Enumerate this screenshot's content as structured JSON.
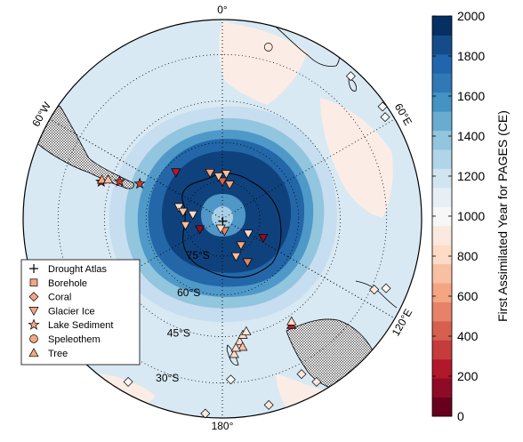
{
  "map": {
    "projection": "south-polar-stereographic",
    "center_lat": -90,
    "edge_lat": -20,
    "longitude_labels": [
      {
        "text": "0°",
        "lon": 0
      },
      {
        "text": "60°E",
        "lon": 60
      },
      {
        "text": "120°E",
        "lon": 120
      },
      {
        "text": "180°",
        "lon": 180
      },
      {
        "text": "60°W",
        "lon": -60
      }
    ],
    "latitude_labels": [
      {
        "text": "75°S",
        "lat": -75
      },
      {
        "text": "60°S",
        "lat": -60
      },
      {
        "text": "45°S",
        "lat": -45
      },
      {
        "text": "30°S",
        "lat": -30
      }
    ],
    "field_description_levels": [
      2000,
      1900,
      1800,
      1700,
      1600,
      1500,
      1400,
      1300,
      1200
    ],
    "land_outline_color": "#000000",
    "graticule_style": "dotted"
  },
  "colorbar": {
    "label": "First Assimilated Year for PAGES (CE)",
    "ticks": [
      "0",
      "200",
      "400",
      "600",
      "800",
      "1000",
      "1200",
      "1400",
      "1600",
      "1800",
      "2000"
    ],
    "min": 0,
    "max": 2000,
    "colors": [
      "#67001f",
      "#8e0b25",
      "#b2182b",
      "#c43c3c",
      "#d6604d",
      "#e58267",
      "#f4a582",
      "#f8c0a2",
      "#fddbc7",
      "#fbe8de",
      "#f7f7f7",
      "#e5eff4",
      "#d1e5f0",
      "#b0d5e8",
      "#92c5de",
      "#6aacd0",
      "#4393c3",
      "#3079b6",
      "#2166ac",
      "#134c89",
      "#053061"
    ]
  },
  "legend": {
    "items": [
      {
        "label": "Drought Atlas",
        "marker": "plus"
      },
      {
        "label": "Borehole",
        "marker": "square"
      },
      {
        "label": "Coral",
        "marker": "diamond"
      },
      {
        "label": "Glacier Ice",
        "marker": "triangle-down"
      },
      {
        "label": "Lake Sediment",
        "marker": "star"
      },
      {
        "label": "Speleothem",
        "marker": "circle"
      },
      {
        "label": "Tree",
        "marker": "triangle-up"
      }
    ]
  },
  "proxies": [
    {
      "type": "speleothem",
      "lon": 15,
      "lat": -26,
      "year": 1850
    },
    {
      "type": "coral",
      "lon": 42,
      "lat": -22,
      "year": 1900
    },
    {
      "type": "coral",
      "lon": 55,
      "lat": -21,
      "year": 1920
    },
    {
      "type": "coral",
      "lon": 58,
      "lat": -22,
      "year": 1900
    },
    {
      "type": "glacier-ice",
      "lon": 0,
      "lat": -75,
      "year": 800
    },
    {
      "type": "glacier-ice",
      "lon": 5,
      "lat": -72,
      "year": 1300
    },
    {
      "type": "glacier-ice",
      "lon": 12,
      "lat": -76,
      "year": 1100
    },
    {
      "type": "glacier-ice",
      "lon": -5,
      "lat": -73,
      "year": 1400
    },
    {
      "type": "glacier-ice",
      "lon": -15,
      "lat": -71,
      "year": 1200
    },
    {
      "type": "glacier-ice",
      "lon": -45,
      "lat": -64,
      "year": 300
    },
    {
      "type": "glacier-ice",
      "lon": -75,
      "lat": -72,
      "year": 1500
    },
    {
      "type": "glacier-ice",
      "lon": -80,
      "lat": -74,
      "year": 1400
    },
    {
      "type": "glacier-ice",
      "lon": -82,
      "lat": -78,
      "year": 1600
    },
    {
      "type": "glacier-ice",
      "lon": -100,
      "lat": -75,
      "year": 1300
    },
    {
      "type": "glacier-ice",
      "lon": -115,
      "lat": -80,
      "year": 200
    },
    {
      "type": "glacier-ice",
      "lon": 170,
      "lat": -85,
      "year": 1000
    },
    {
      "type": "glacier-ice",
      "lon": -170,
      "lat": -86,
      "year": 1500
    },
    {
      "type": "glacier-ice",
      "lon": 120,
      "lat": -78,
      "year": 1600
    },
    {
      "type": "glacier-ice",
      "lon": 145,
      "lat": -77,
      "year": 1100
    },
    {
      "type": "glacier-ice",
      "lon": 160,
      "lat": -74,
      "year": 1300
    },
    {
      "type": "glacier-ice",
      "lon": 115,
      "lat": -72,
      "year": 100
    },
    {
      "type": "glacier-ice",
      "lon": 150,
      "lat": -70,
      "year": 900
    },
    {
      "type": "drought-atlas",
      "lon": 170,
      "lat": -89,
      "year": 1000
    },
    {
      "type": "lake-sediment",
      "lon": -70,
      "lat": -48,
      "year": 500
    },
    {
      "type": "lake-sediment",
      "lon": -73,
      "lat": -42,
      "year": 300
    },
    {
      "type": "lake-sediment",
      "lon": -67,
      "lat": -55,
      "year": 600
    },
    {
      "type": "tree",
      "lon": -72,
      "lat": -42,
      "year": 1200
    },
    {
      "type": "tree",
      "lon": -71,
      "lat": -44,
      "year": 1400
    },
    {
      "type": "tree",
      "lon": 147,
      "lat": -42,
      "year": 400
    },
    {
      "type": "tree",
      "lon": 146,
      "lat": -43,
      "year": 1500
    },
    {
      "type": "tree",
      "lon": 172,
      "lat": -43,
      "year": 1600
    },
    {
      "type": "tree",
      "lon": 170,
      "lat": -45,
      "year": 1500
    },
    {
      "type": "tree",
      "lon": 171,
      "lat": -41,
      "year": 1400
    },
    {
      "type": "tree",
      "lon": 175,
      "lat": -39,
      "year": 1600
    },
    {
      "type": "tree",
      "lon": 168,
      "lat": -46,
      "year": 1700
    },
    {
      "type": "tree",
      "lon": 174,
      "lat": -41,
      "year": 1500
    },
    {
      "type": "coral",
      "lon": 115,
      "lat": -29,
      "year": 1800
    },
    {
      "type": "coral",
      "lon": 113,
      "lat": -26,
      "year": 1900
    },
    {
      "type": "coral",
      "lon": 150,
      "lat": -23,
      "year": 1700
    },
    {
      "type": "coral",
      "lon": 153,
      "lat": -27,
      "year": 1800
    },
    {
      "type": "coral",
      "lon": 177,
      "lat": -31,
      "year": 1900
    },
    {
      "type": "coral",
      "lon": -175,
      "lat": -21,
      "year": 1850
    },
    {
      "type": "coral",
      "lon": -150,
      "lat": -23,
      "year": 1900
    },
    {
      "type": "coral",
      "lon": 166,
      "lat": -22,
      "year": 1850
    }
  ]
}
